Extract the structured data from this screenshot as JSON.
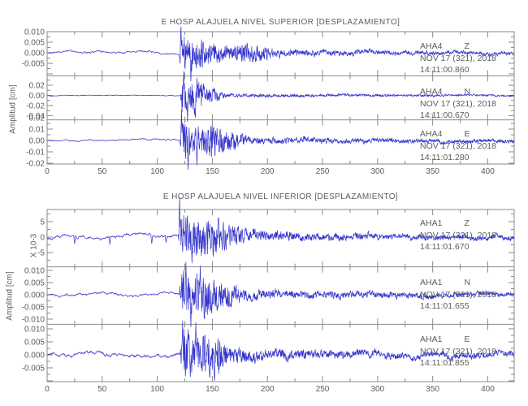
{
  "chart_data": {
    "type": "line",
    "style": {
      "trace_color": "#3434cc",
      "frame_color": "#8a8a8a",
      "text_color": "#5c5c5c",
      "background": "#ffffff"
    },
    "x_axis": {
      "major_ticks": [
        0,
        50,
        100,
        150,
        200,
        250,
        300,
        350,
        400
      ],
      "minor_step": 25,
      "range": [
        0,
        424
      ]
    },
    "panels": [
      {
        "title": "E HOSP ALAJUELA NIVEL SUPERIOR [DESPLAZAMIENTO]",
        "y_axis_label": "Amplitud [cm]",
        "traces": [
          {
            "station": "AHA4",
            "component": "Z",
            "date_line": "NOV 17 (321), 2018",
            "time_line": "14:11:00.860",
            "y_tick_values": [
              0.01,
              0.005,
              0.0,
              -0.005
            ],
            "y_tick_labels": [
              "0.010",
              "0.005",
              "0.000",
              "-0.005"
            ],
            "waveform": {
              "onset": 120,
              "rise": 2,
              "noise": 0.0006,
              "wander": 0.0005,
              "peak": 0.009,
              "decay": 30,
              "coda": 0.0015,
              "bumps": [
                {
                  "t": 185,
                  "a": 0.0018,
                  "w": 20
                }
              ],
              "spikes": [
                {
                  "t": 121.5,
                  "v": 0.0125
                },
                {
                  "t": 130.5,
                  "v": -0.0135
                }
              ],
              "seed": 7
            }
          },
          {
            "station": "AHA4",
            "component": "N",
            "date_line": "NOV 17 (321), 2018",
            "time_line": "14:11:00.670",
            "y_tick_values": [
              0.02,
              0.0,
              -0.02,
              -0.04
            ],
            "y_tick_labels": [
              "0.02",
              "0.00",
              "-0.02",
              "-0.04"
            ],
            "waveform": {
              "onset": 121,
              "rise": 1.5,
              "noise": 0.0009,
              "wander": 0.0006,
              "peak": 0.04,
              "decay": 9,
              "coda": 0.0035,
              "bumps": [
                {
                  "t": 137,
                  "a": 0.03,
                  "w": 5
                },
                {
                  "t": 150,
                  "a": 0.01,
                  "w": 8
                }
              ],
              "spikes": [
                {
                  "t": 124,
                  "v": 0.048
                },
                {
                  "t": 127.5,
                  "v": -0.052
                }
              ],
              "seed": 13
            }
          },
          {
            "station": "AHA4",
            "component": "E",
            "date_line": "NOV 17 (321), 2018",
            "time_line": "14:11:01.280",
            "y_tick_values": [
              0.02,
              0.01,
              0.0,
              -0.01,
              -0.02
            ],
            "y_tick_labels": [
              "0.02",
              "0.01",
              "0.00",
              "-0.01",
              "-0.02"
            ],
            "waveform": {
              "onset": 120.5,
              "rise": 2,
              "noise": 0.0009,
              "wander": 0.0006,
              "peak": 0.02,
              "decay": 16,
              "coda": 0.003,
              "bumps": [
                {
                  "t": 150,
                  "a": 0.009,
                  "w": 9
                },
                {
                  "t": 168,
                  "a": 0.005,
                  "w": 10
                }
              ],
              "spikes": [
                {
                  "t": 122,
                  "v": 0.027
                },
                {
                  "t": 128,
                  "v": -0.026
                },
                {
                  "t": 136,
                  "v": -0.022
                }
              ],
              "seed": 21
            }
          }
        ]
      },
      {
        "title": "E HOSP ALAJUELA NIVEL INFERIOR [DESPLAZAMIENTO]",
        "y_axis_label": "Amplitud [cm]",
        "y_scale_label": "X 10-3",
        "traces": [
          {
            "station": "AHA1",
            "component": "Z",
            "date_line": "NOV 17 (321), 2018",
            "time_line": "14:11:01.670",
            "y_tick_values": [
              5,
              0,
              -5
            ],
            "y_tick_labels": [
              "5",
              "0",
              "-5"
            ],
            "waveform": {
              "onset": 119,
              "rise": 1.5,
              "noise": 0.55,
              "wander": 0.5,
              "peak": 7,
              "decay": 28,
              "coda": 1.4,
              "bumps": [
                {
                  "t": 150,
                  "a": 2.2,
                  "w": 18
                }
              ],
              "spikes": [
                {
                  "t": 120.2,
                  "v": 13
                },
                {
                  "t": 131.5,
                  "v": -8.5
                },
                {
                  "t": 25,
                  "v": -2.3
                },
                {
                  "t": 57,
                  "v": -2.5
                },
                {
                  "t": 95,
                  "v": -2.1
                },
                {
                  "t": 108,
                  "v": -1.8
                }
              ],
              "seed": 29
            }
          },
          {
            "station": "AHA1",
            "component": "N",
            "date_line": "NOV 17 (321), 2018",
            "time_line": "14:11:01.655",
            "y_tick_values": [
              0.01,
              0.005,
              0.0,
              -0.005,
              -0.01
            ],
            "y_tick_labels": [
              "0.010",
              "0.005",
              "0.000",
              "-0.005",
              "-0.010"
            ],
            "waveform": {
              "onset": 120,
              "rise": 2.5,
              "noise": 0.0006,
              "wander": 0.0005,
              "peak": 0.009,
              "decay": 22,
              "coda": 0.0018,
              "bumps": [
                {
                  "t": 143,
                  "a": 0.004,
                  "w": 10
                },
                {
                  "t": 165,
                  "a": 0.0025,
                  "w": 10
                }
              ],
              "spikes": [
                {
                  "t": 126,
                  "v": 0.0135
                },
                {
                  "t": 130.5,
                  "v": -0.0132
                },
                {
                  "t": 139,
                  "v": 0.012
                }
              ],
              "seed": 37
            }
          },
          {
            "station": "AHA1",
            "component": "E",
            "date_line": "NOV 17 (321), 2018",
            "time_line": "14:11:01.855",
            "y_tick_values": [
              0.01,
              0.005,
              0.0,
              -0.005
            ],
            "y_tick_labels": [
              "0.010",
              "0.005",
              "0.000",
              "-0.005"
            ],
            "waveform": {
              "onset": 121,
              "rise": 2.5,
              "noise": 0.0008,
              "wander": 0.0006,
              "peak": 0.009,
              "decay": 24,
              "coda": 0.002,
              "bumps": [
                {
                  "t": 148,
                  "a": 0.004,
                  "w": 12
                }
              ],
              "spikes": [
                {
                  "t": 123,
                  "v": 0.0132
                },
                {
                  "t": 135,
                  "v": 0.0125
                },
                {
                  "t": 130,
                  "v": -0.0085
                }
              ],
              "seed": 43
            }
          }
        ]
      }
    ]
  }
}
